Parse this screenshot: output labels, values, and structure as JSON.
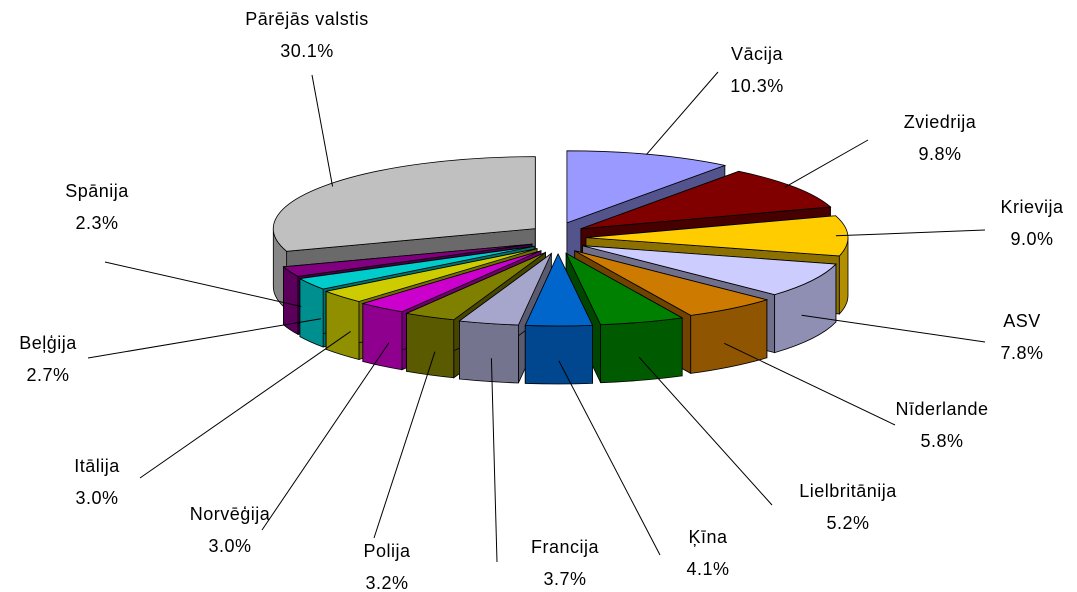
{
  "chart_data": {
    "type": "pie3d",
    "categories": [
      "Vācija",
      "Zviedrija",
      "Krievija",
      "ASV",
      "Nīderlande",
      "Lielbritānija",
      "Ķīna",
      "Francija",
      "Polija",
      "Norvēģija",
      "Itālija",
      "Beļģija",
      "Spānija",
      "Pārējās valstis"
    ],
    "values": [
      10.3,
      9.8,
      9.0,
      7.8,
      5.8,
      5.2,
      4.1,
      3.7,
      3.2,
      3.0,
      3.0,
      2.7,
      2.3,
      30.1
    ],
    "value_labels": [
      "10.3%",
      "9.8%",
      "9.0%",
      "7.8%",
      "5.8%",
      "5.2%",
      "4.1%",
      "3.7%",
      "3.2%",
      "3.0%",
      "3.0%",
      "2.7%",
      "2.3%",
      "30.1%"
    ],
    "colors": [
      "#9999ff",
      "#800000",
      "#ffcc00",
      "#ccccff",
      "#cc7a00",
      "#008000",
      "#0066cc",
      "#a6a6cc",
      "#808000",
      "#cc00cc",
      "#cccc00",
      "#00cccc",
      "#800080",
      "#c0c0c0"
    ]
  }
}
